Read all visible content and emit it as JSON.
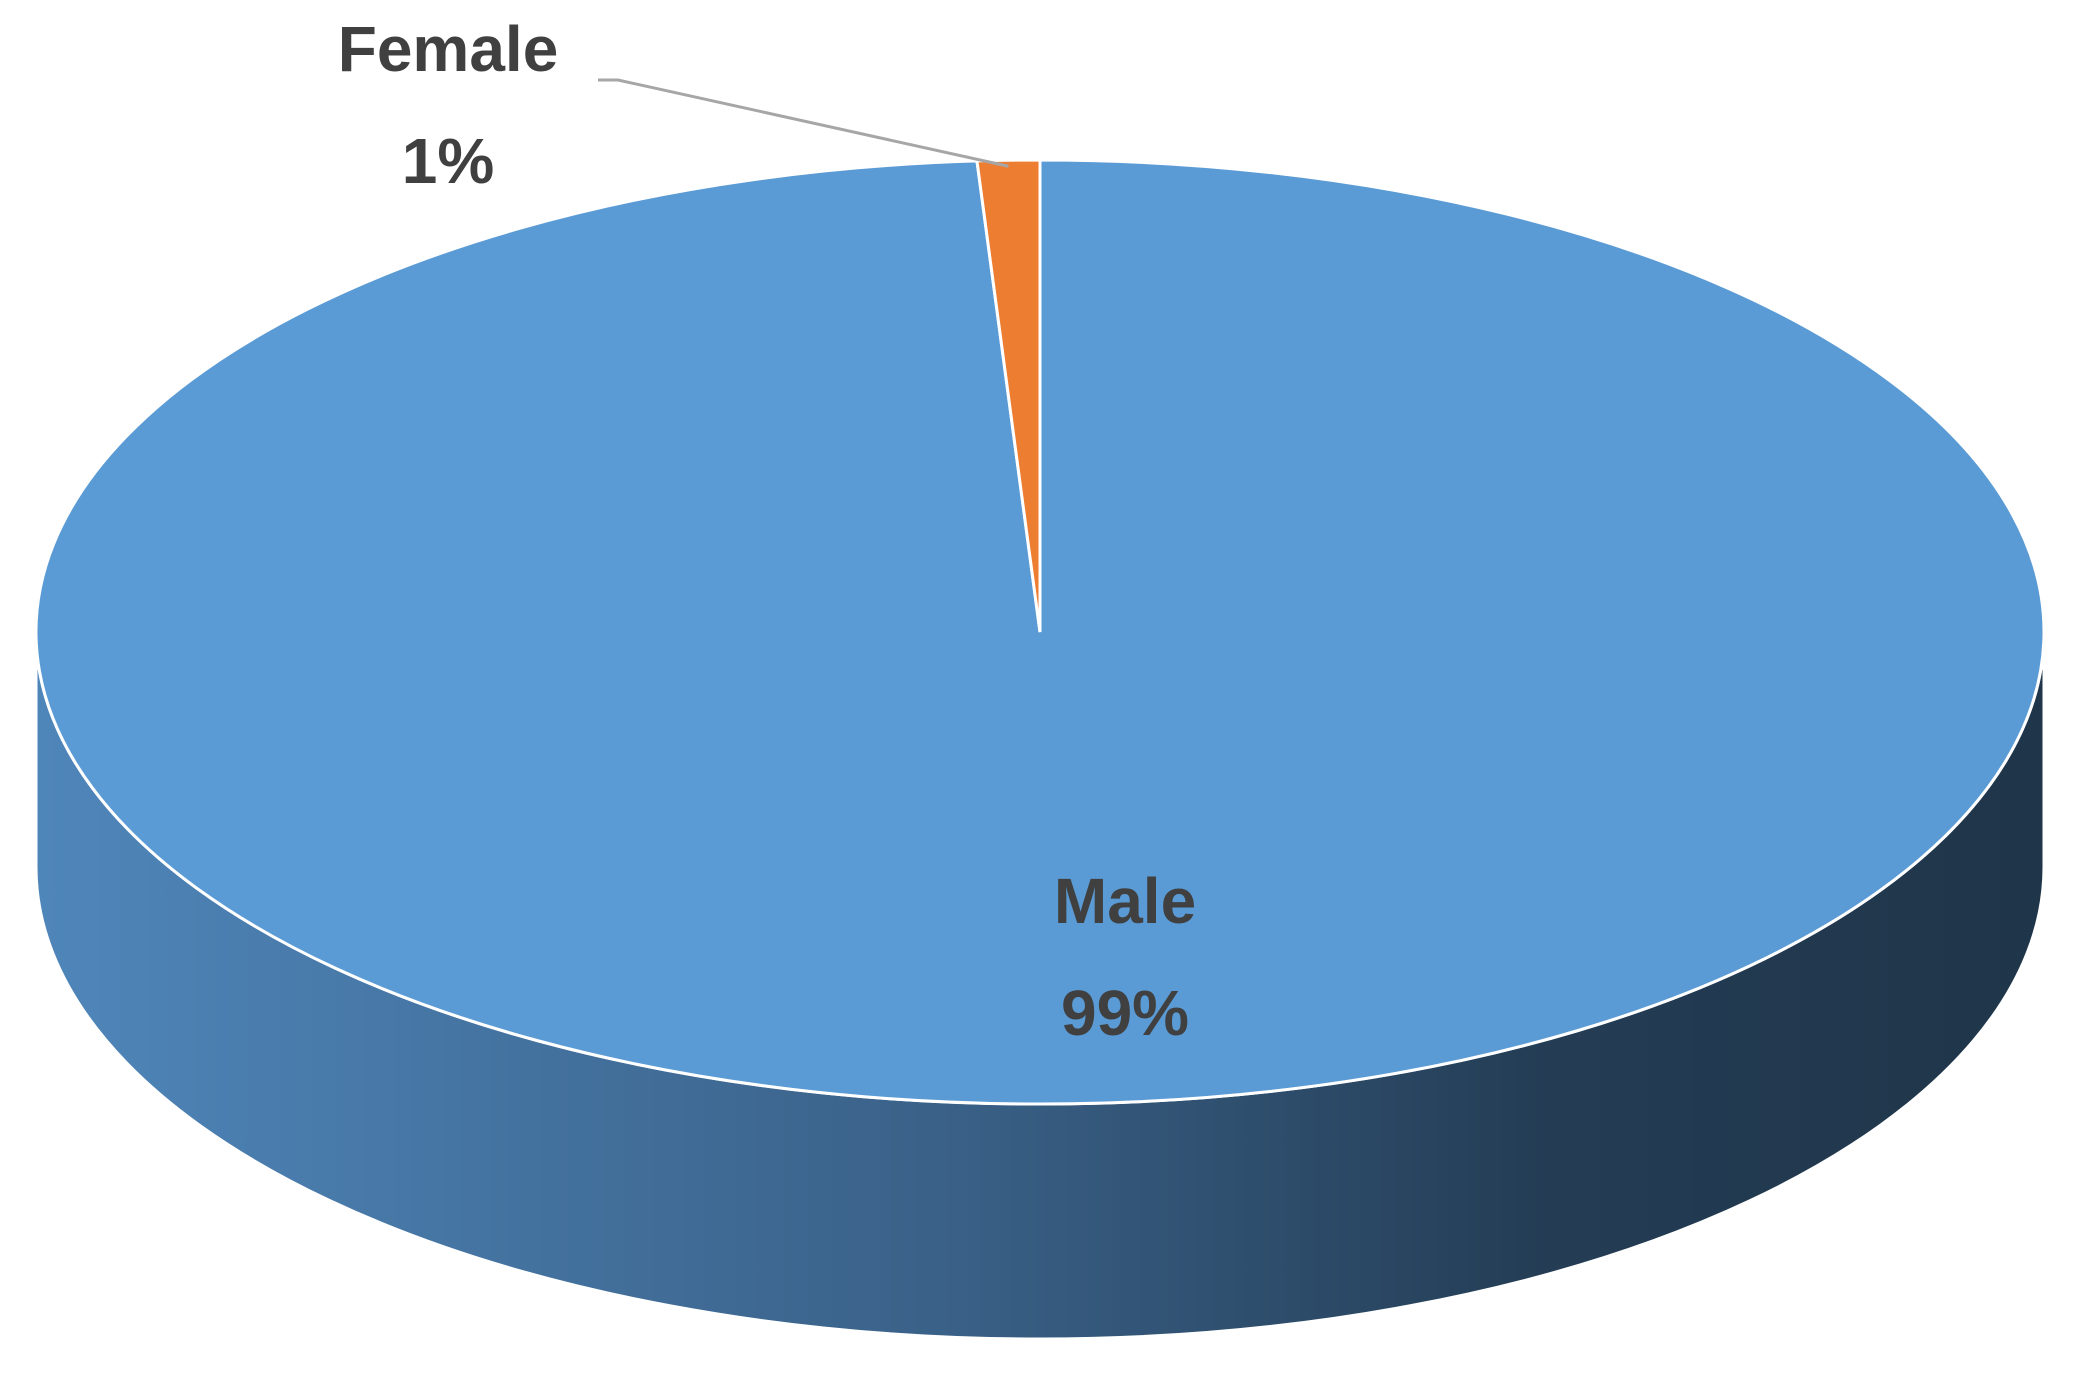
{
  "chart_data": {
    "type": "pie3d",
    "categories": [
      "Male",
      "Female"
    ],
    "values": [
      99,
      1
    ],
    "value_labels": [
      "99%",
      "1%"
    ],
    "colors": [
      "#5b9bd5",
      "#ed7d31"
    ]
  }
}
